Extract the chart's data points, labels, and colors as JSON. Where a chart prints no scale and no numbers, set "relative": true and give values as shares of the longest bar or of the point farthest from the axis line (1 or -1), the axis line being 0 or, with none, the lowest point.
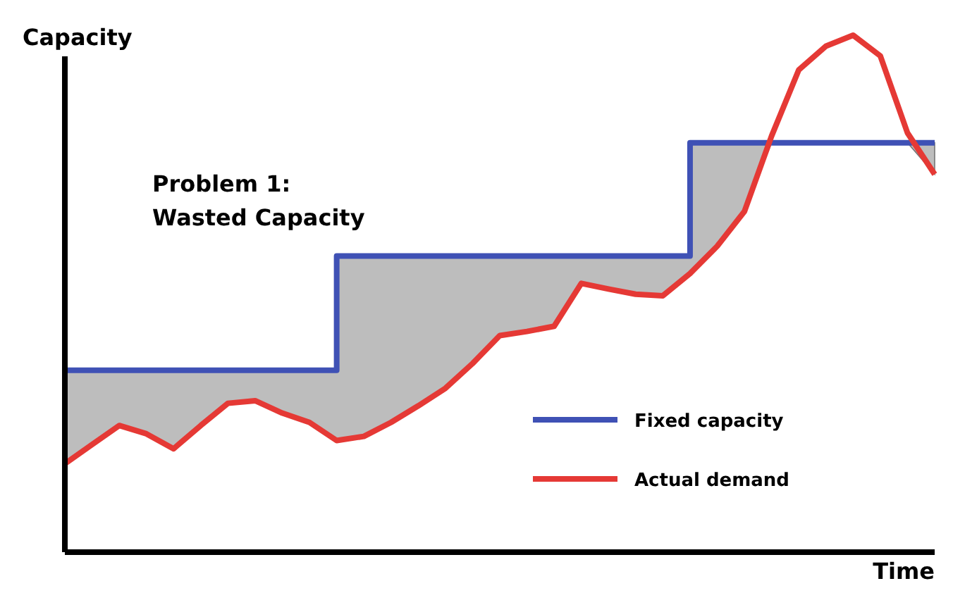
{
  "chart_data": {
    "type": "line",
    "relative": true,
    "xlabel": "Time",
    "ylabel": "Capacity",
    "annotations": [
      "Problem 1:",
      "Wasted Capacity"
    ],
    "categories": [
      null,
      null,
      null,
      null,
      null,
      null,
      null,
      null,
      null,
      null,
      null,
      null,
      null,
      null,
      null,
      null,
      null,
      null,
      null,
      null,
      null,
      null,
      null,
      null,
      null,
      null,
      null,
      null,
      null,
      null,
      null,
      null,
      null
    ],
    "series": [
      {
        "name": "Fixed capacity",
        "type": "step",
        "color": "#3f51b5",
        "values": [
          0.352,
          0.352,
          0.352,
          0.352,
          0.352,
          0.352,
          0.352,
          0.352,
          0.352,
          0.352,
          0.573,
          0.573,
          0.573,
          0.573,
          0.573,
          0.573,
          0.573,
          0.573,
          0.573,
          0.573,
          0.573,
          0.573,
          0.573,
          0.792,
          0.792,
          0.792,
          0.792,
          0.792,
          0.792,
          0.792,
          0.792,
          0.792,
          0.792
        ],
        "lower": [
          0.171,
          0.208,
          0.245,
          0.229,
          0.2,
          0.245,
          0.288,
          0.293,
          0.269,
          0.251,
          0.216,
          0.224,
          0.251,
          0.283,
          0.317,
          0.365,
          0.419,
          0.427,
          0.437,
          0.52,
          0.509,
          0.499,
          0.496,
          0.539,
          0.592,
          0.659,
          0.792,
          0.792,
          0.792,
          0.792,
          0.792,
          0.792,
          0.731
        ],
        "upper": [
          0.352,
          0.352,
          0.352,
          0.352,
          0.352,
          0.352,
          0.352,
          0.352,
          0.352,
          0.352,
          0.573,
          0.573,
          0.573,
          0.573,
          0.573,
          0.573,
          0.573,
          0.573,
          0.573,
          0.573,
          0.573,
          0.573,
          0.573,
          0.792,
          0.792,
          0.792,
          0.792,
          0.792,
          0.792,
          0.792,
          0.792,
          0.792,
          0.792
        ]
      },
      {
        "name": "Actual demand",
        "type": "line",
        "color": "#e53935",
        "values": [
          0.171,
          0.208,
          0.245,
          0.229,
          0.2,
          0.245,
          0.288,
          0.293,
          0.269,
          0.251,
          0.216,
          0.224,
          0.251,
          0.283,
          0.317,
          0.365,
          0.419,
          0.427,
          0.437,
          0.52,
          0.509,
          0.499,
          0.496,
          0.539,
          0.592,
          0.659,
          0.805,
          0.933,
          0.979,
          1,
          0.96,
          0.811,
          0.731
        ]
      }
    ],
    "legend": "bottom right",
    "grid": false,
    "marker": "none",
    "line_style": "solid"
  }
}
